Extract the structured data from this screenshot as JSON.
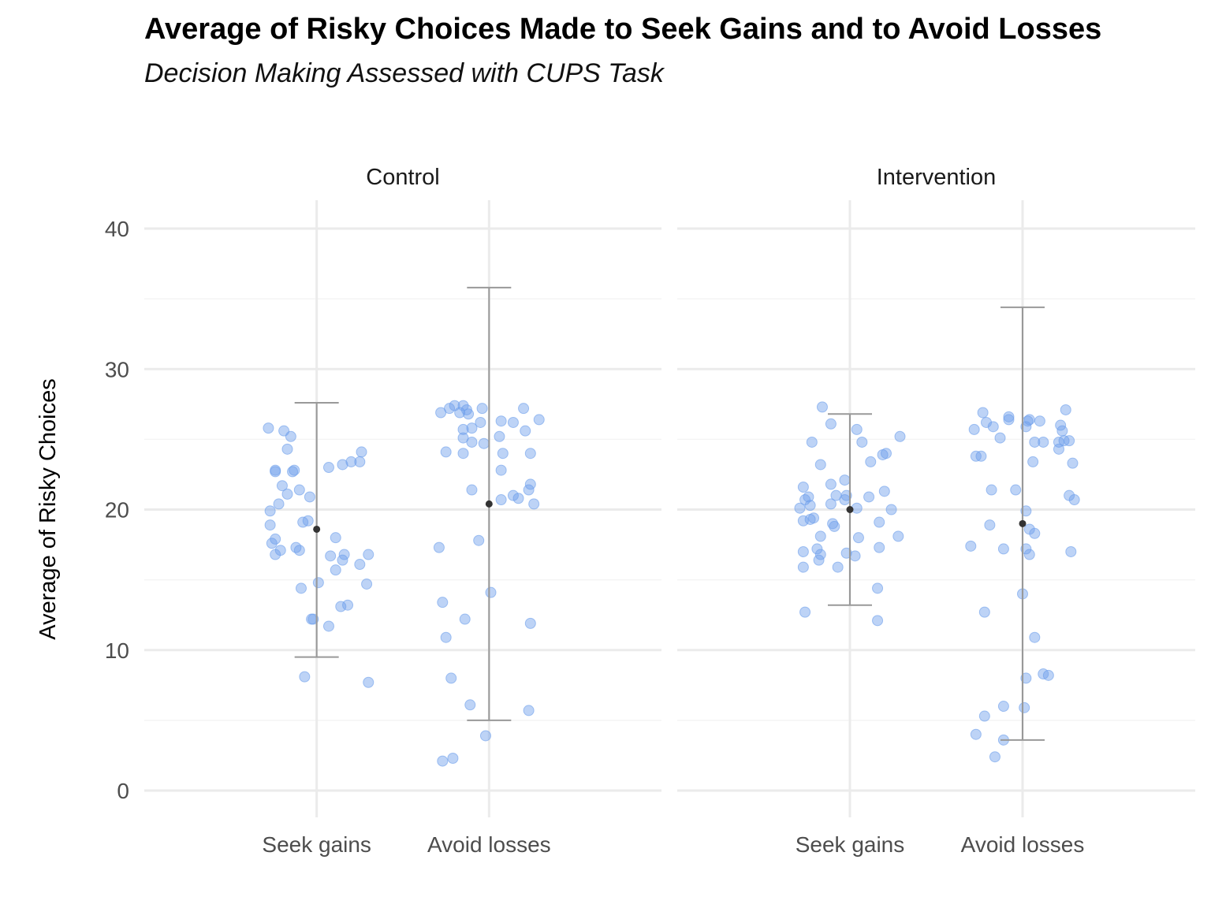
{
  "title": "Average of Risky Choices Made to Seek Gains and to Avoid Losses",
  "subtitle": "Decision Making Assessed with CUPS Task",
  "colors": {
    "point": "#6d9eeb",
    "errorbar": "#999999",
    "mean": "#333333",
    "grid_major": "#ebebeb",
    "grid_minor": "#f4f4f4"
  },
  "chart_data": {
    "type": "scatter",
    "ylabel": "Average of Risky Choices",
    "xlabel": "",
    "ylim": [
      -2,
      42
    ],
    "yticks": [
      0,
      10,
      20,
      30,
      40
    ],
    "grid": true,
    "legend": "none",
    "categories": [
      "Seek gains",
      "Avoid losses"
    ],
    "panels": [
      {
        "name": "Control",
        "groups": [
          {
            "category": "Seek gains",
            "mean": 18.6,
            "lower": 9.5,
            "upper": 27.6,
            "points": [
              [
                -0.28,
                25.8
              ],
              [
                -0.19,
                25.6
              ],
              [
                -0.15,
                25.2
              ],
              [
                -0.17,
                24.3
              ],
              [
                -0.24,
                22.8
              ],
              [
                -0.24,
                22.7
              ],
              [
                -0.13,
                22.8
              ],
              [
                -0.14,
                22.7
              ],
              [
                -0.2,
                21.7
              ],
              [
                -0.1,
                21.4
              ],
              [
                -0.17,
                21.1
              ],
              [
                -0.22,
                20.4
              ],
              [
                -0.04,
                20.9
              ],
              [
                -0.27,
                18.9
              ],
              [
                -0.08,
                19.1
              ],
              [
                -0.05,
                19.2
              ],
              [
                -0.24,
                17.9
              ],
              [
                -0.26,
                17.6
              ],
              [
                -0.12,
                17.3
              ],
              [
                -0.1,
                17.1
              ],
              [
                -0.21,
                17.1
              ],
              [
                -0.24,
                16.8
              ],
              [
                -0.27,
                19.9
              ],
              [
                -0.09,
                14.4
              ],
              [
                0.01,
                14.8
              ],
              [
                -0.03,
                12.2
              ],
              [
                -0.02,
                12.2
              ],
              [
                0.07,
                23.0
              ],
              [
                0.15,
                23.2
              ],
              [
                0.2,
                23.4
              ],
              [
                0.25,
                23.4
              ],
              [
                0.26,
                24.1
              ],
              [
                0.11,
                18.0
              ],
              [
                0.08,
                16.7
              ],
              [
                0.16,
                16.8
              ],
              [
                0.15,
                16.4
              ],
              [
                0.11,
                15.7
              ],
              [
                0.25,
                16.1
              ],
              [
                0.3,
                16.8
              ],
              [
                0.29,
                14.7
              ],
              [
                0.07,
                11.7
              ],
              [
                0.14,
                13.1
              ],
              [
                0.18,
                13.2
              ],
              [
                -0.07,
                8.1
              ],
              [
                0.3,
                7.7
              ]
            ]
          },
          {
            "category": "Avoid losses",
            "mean": 20.4,
            "lower": 5.0,
            "upper": 35.8,
            "points": [
              [
                -0.28,
                26.9
              ],
              [
                -0.23,
                27.2
              ],
              [
                -0.2,
                27.4
              ],
              [
                -0.17,
                26.9
              ],
              [
                -0.15,
                27.4
              ],
              [
                -0.13,
                27.1
              ],
              [
                -0.12,
                26.8
              ],
              [
                -0.04,
                27.2
              ],
              [
                -0.1,
                25.8
              ],
              [
                -0.05,
                26.2
              ],
              [
                -0.15,
                25.7
              ],
              [
                -0.15,
                25.1
              ],
              [
                -0.1,
                24.8
              ],
              [
                -0.03,
                24.7
              ],
              [
                -0.25,
                24.1
              ],
              [
                -0.15,
                24.0
              ],
              [
                -0.1,
                21.4
              ],
              [
                0.07,
                26.3
              ],
              [
                0.06,
                25.2
              ],
              [
                0.14,
                26.2
              ],
              [
                0.2,
                27.2
              ],
              [
                0.21,
                25.6
              ],
              [
                0.29,
                26.4
              ],
              [
                0.08,
                24.0
              ],
              [
                0.24,
                24.0
              ],
              [
                0.07,
                22.8
              ],
              [
                0.07,
                20.7
              ],
              [
                0.14,
                21.0
              ],
              [
                0.17,
                20.8
              ],
              [
                0.23,
                21.4
              ],
              [
                0.24,
                21.8
              ],
              [
                0.26,
                20.4
              ],
              [
                -0.29,
                17.3
              ],
              [
                -0.06,
                17.8
              ],
              [
                -0.27,
                13.4
              ],
              [
                -0.25,
                10.9
              ],
              [
                -0.14,
                12.2
              ],
              [
                0.01,
                14.1
              ],
              [
                0.24,
                11.9
              ],
              [
                -0.22,
                8.0
              ],
              [
                -0.11,
                6.1
              ],
              [
                -0.02,
                3.9
              ],
              [
                0.23,
                5.7
              ],
              [
                -0.27,
                2.1
              ],
              [
                -0.21,
                2.3
              ]
            ]
          }
        ]
      },
      {
        "name": "Intervention",
        "groups": [
          {
            "category": "Seek gains",
            "mean": 20.0,
            "lower": 13.2,
            "upper": 26.8,
            "points": [
              [
                -0.16,
                27.3
              ],
              [
                -0.11,
                26.1
              ],
              [
                -0.22,
                24.8
              ],
              [
                -0.17,
                23.2
              ],
              [
                -0.27,
                21.6
              ],
              [
                -0.24,
                20.9
              ],
              [
                -0.26,
                20.7
              ],
              [
                -0.29,
                20.1
              ],
              [
                -0.23,
                20.3
              ],
              [
                -0.27,
                19.2
              ],
              [
                -0.23,
                19.3
              ],
              [
                -0.21,
                19.4
              ],
              [
                -0.11,
                21.8
              ],
              [
                -0.08,
                21.0
              ],
              [
                -0.03,
                22.1
              ],
              [
                -0.03,
                20.7
              ],
              [
                -0.02,
                21.0
              ],
              [
                -0.11,
                20.4
              ],
              [
                -0.1,
                19.0
              ],
              [
                -0.09,
                18.8
              ],
              [
                -0.17,
                18.1
              ],
              [
                -0.19,
                17.2
              ],
              [
                -0.17,
                16.8
              ],
              [
                -0.18,
                16.4
              ],
              [
                -0.27,
                17.0
              ],
              [
                -0.27,
                15.9
              ],
              [
                -0.07,
                15.9
              ],
              [
                -0.02,
                16.9
              ],
              [
                0.04,
                25.7
              ],
              [
                0.07,
                24.8
              ],
              [
                0.12,
                23.4
              ],
              [
                0.19,
                23.9
              ],
              [
                0.21,
                24.0
              ],
              [
                0.29,
                25.2
              ],
              [
                0.11,
                20.9
              ],
              [
                0.04,
                20.1
              ],
              [
                0.2,
                21.3
              ],
              [
                0.24,
                20.0
              ],
              [
                0.17,
                19.1
              ],
              [
                0.05,
                18.0
              ],
              [
                0.03,
                16.7
              ],
              [
                0.17,
                17.3
              ],
              [
                0.28,
                18.1
              ],
              [
                -0.26,
                12.7
              ],
              [
                0.16,
                14.4
              ],
              [
                0.16,
                12.1
              ]
            ]
          },
          {
            "category": "Avoid losses",
            "mean": 19.0,
            "lower": 3.6,
            "upper": 34.4,
            "points": [
              [
                -0.23,
                26.9
              ],
              [
                -0.21,
                26.2
              ],
              [
                -0.17,
                25.9
              ],
              [
                -0.28,
                25.7
              ],
              [
                -0.13,
                25.1
              ],
              [
                -0.08,
                26.6
              ],
              [
                -0.08,
                26.4
              ],
              [
                0.02,
                25.9
              ],
              [
                0.03,
                26.3
              ],
              [
                0.04,
                26.4
              ],
              [
                0.1,
                26.3
              ],
              [
                0.12,
                24.8
              ],
              [
                0.07,
                24.8
              ],
              [
                -0.27,
                23.8
              ],
              [
                -0.24,
                23.8
              ],
              [
                0.06,
                23.4
              ],
              [
                -0.18,
                21.4
              ],
              [
                -0.04,
                21.4
              ],
              [
                -0.19,
                18.9
              ],
              [
                0.02,
                19.9
              ],
              [
                0.04,
                18.6
              ],
              [
                0.07,
                18.3
              ],
              [
                -0.11,
                17.2
              ],
              [
                0.02,
                17.2
              ],
              [
                0.04,
                16.8
              ],
              [
                -0.3,
                17.4
              ],
              [
                0.24,
                24.9
              ],
              [
                0.21,
                24.8
              ],
              [
                0.22,
                26.0
              ],
              [
                0.23,
                25.6
              ],
              [
                0.21,
                24.3
              ],
              [
                0.25,
                27.1
              ],
              [
                0.27,
                24.9
              ],
              [
                0.27,
                21.0
              ],
              [
                0.3,
                20.7
              ],
              [
                0.29,
                23.3
              ],
              [
                0.28,
                17.0
              ],
              [
                -0.22,
                12.7
              ],
              [
                0.0,
                14.0
              ],
              [
                0.07,
                10.9
              ],
              [
                0.02,
                8.0
              ],
              [
                0.12,
                8.3
              ],
              [
                0.15,
                8.2
              ],
              [
                -0.11,
                6.0
              ],
              [
                0.01,
                5.9
              ],
              [
                -0.22,
                5.3
              ],
              [
                -0.27,
                4.0
              ],
              [
                -0.16,
                2.4
              ],
              [
                -0.11,
                3.6
              ]
            ]
          }
        ]
      }
    ]
  }
}
